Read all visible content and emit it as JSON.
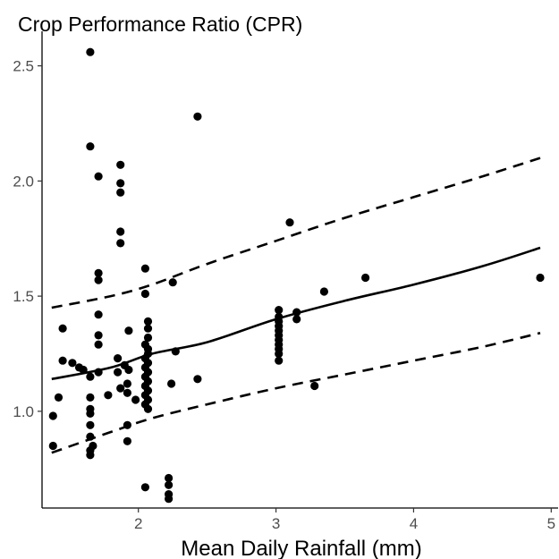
{
  "chart_data": {
    "type": "scatter",
    "title": "Crop Performance Ratio (CPR)",
    "xlabel": "Mean Daily Rainfall (mm)",
    "ylabel": "",
    "xlim": [
      1.3,
      5.05
    ],
    "ylim": [
      0.58,
      2.65
    ],
    "x_ticks": [
      2,
      3,
      4,
      5
    ],
    "y_ticks": [
      1.0,
      1.5,
      2.0,
      2.5
    ],
    "x_tick_labels": [
      "2",
      "3",
      "4",
      "5"
    ],
    "y_tick_labels": [
      "1.0",
      "1.5",
      "2.0",
      "2.5"
    ],
    "grid": false,
    "legend": "none",
    "point_color": "#000000",
    "points": [
      [
        1.65,
        2.56
      ],
      [
        2.43,
        2.28
      ],
      [
        1.65,
        2.15
      ],
      [
        1.87,
        2.07
      ],
      [
        1.71,
        2.02
      ],
      [
        1.87,
        1.99
      ],
      [
        1.87,
        1.95
      ],
      [
        1.87,
        1.78
      ],
      [
        1.87,
        1.73
      ],
      [
        3.1,
        1.82
      ],
      [
        1.71,
        1.6
      ],
      [
        1.71,
        1.57
      ],
      [
        2.05,
        1.62
      ],
      [
        2.25,
        1.56
      ],
      [
        3.65,
        1.58
      ],
      [
        4.92,
        1.58
      ],
      [
        3.35,
        1.52
      ],
      [
        2.05,
        1.51
      ],
      [
        1.71,
        1.42
      ],
      [
        1.71,
        1.33
      ],
      [
        1.93,
        1.35
      ],
      [
        1.45,
        1.36
      ],
      [
        2.07,
        1.39
      ],
      [
        2.07,
        1.36
      ],
      [
        2.07,
        1.32
      ],
      [
        1.71,
        1.29
      ],
      [
        2.05,
        1.29
      ],
      [
        2.07,
        1.27
      ],
      [
        2.07,
        1.25
      ],
      [
        2.05,
        1.23
      ],
      [
        2.07,
        1.21
      ],
      [
        2.05,
        1.19
      ],
      [
        2.07,
        1.17
      ],
      [
        2.05,
        1.15
      ],
      [
        2.07,
        1.13
      ],
      [
        2.05,
        1.11
      ],
      [
        2.07,
        1.09
      ],
      [
        2.05,
        1.07
      ],
      [
        2.07,
        1.05
      ],
      [
        2.05,
        1.03
      ],
      [
        2.07,
        1.01
      ],
      [
        1.45,
        1.22
      ],
      [
        1.52,
        1.21
      ],
      [
        1.57,
        1.19
      ],
      [
        1.6,
        1.18
      ],
      [
        1.65,
        1.15
      ],
      [
        1.71,
        1.17
      ],
      [
        1.85,
        1.23
      ],
      [
        1.85,
        1.17
      ],
      [
        1.9,
        1.2
      ],
      [
        1.93,
        1.18
      ],
      [
        1.87,
        1.1
      ],
      [
        1.92,
        1.12
      ],
      [
        1.92,
        1.08
      ],
      [
        1.78,
        1.07
      ],
      [
        1.98,
        1.05
      ],
      [
        1.42,
        1.06
      ],
      [
        1.65,
        1.06
      ],
      [
        1.65,
        1.01
      ],
      [
        1.65,
        0.99
      ],
      [
        1.38,
        0.98
      ],
      [
        1.65,
        0.94
      ],
      [
        1.92,
        0.94
      ],
      [
        1.65,
        0.89
      ],
      [
        1.92,
        0.87
      ],
      [
        1.38,
        0.85
      ],
      [
        1.67,
        0.85
      ],
      [
        1.65,
        0.83
      ],
      [
        1.65,
        0.81
      ],
      [
        2.27,
        1.26
      ],
      [
        2.24,
        1.12
      ],
      [
        2.43,
        1.14
      ],
      [
        2.22,
        0.71
      ],
      [
        2.22,
        0.68
      ],
      [
        2.22,
        0.64
      ],
      [
        2.22,
        0.62
      ],
      [
        2.05,
        0.67
      ],
      [
        3.02,
        1.44
      ],
      [
        3.02,
        1.41
      ],
      [
        3.02,
        1.39
      ],
      [
        3.02,
        1.37
      ],
      [
        3.02,
        1.35
      ],
      [
        3.02,
        1.33
      ],
      [
        3.02,
        1.31
      ],
      [
        3.02,
        1.29
      ],
      [
        3.02,
        1.27
      ],
      [
        3.02,
        1.25
      ],
      [
        3.02,
        1.22
      ],
      [
        3.15,
        1.43
      ],
      [
        3.15,
        1.4
      ],
      [
        3.28,
        1.11
      ]
    ],
    "fit_line": {
      "x": [
        1.37,
        1.8,
        2.1,
        2.5,
        3.0,
        3.5,
        4.0,
        4.5,
        4.92
      ],
      "y": [
        1.14,
        1.19,
        1.25,
        1.3,
        1.4,
        1.48,
        1.55,
        1.63,
        1.71
      ]
    },
    "upper_band": {
      "x": [
        1.37,
        1.8,
        2.1,
        2.5,
        3.0,
        3.5,
        4.0,
        4.5,
        4.92
      ],
      "y": [
        1.45,
        1.5,
        1.55,
        1.64,
        1.74,
        1.84,
        1.93,
        2.02,
        2.1
      ]
    },
    "lower_band": {
      "x": [
        1.37,
        1.8,
        2.1,
        2.5,
        3.0,
        3.5,
        4.0,
        4.5,
        4.92
      ],
      "y": [
        0.82,
        0.91,
        0.97,
        1.03,
        1.1,
        1.16,
        1.22,
        1.28,
        1.34
      ]
    }
  }
}
